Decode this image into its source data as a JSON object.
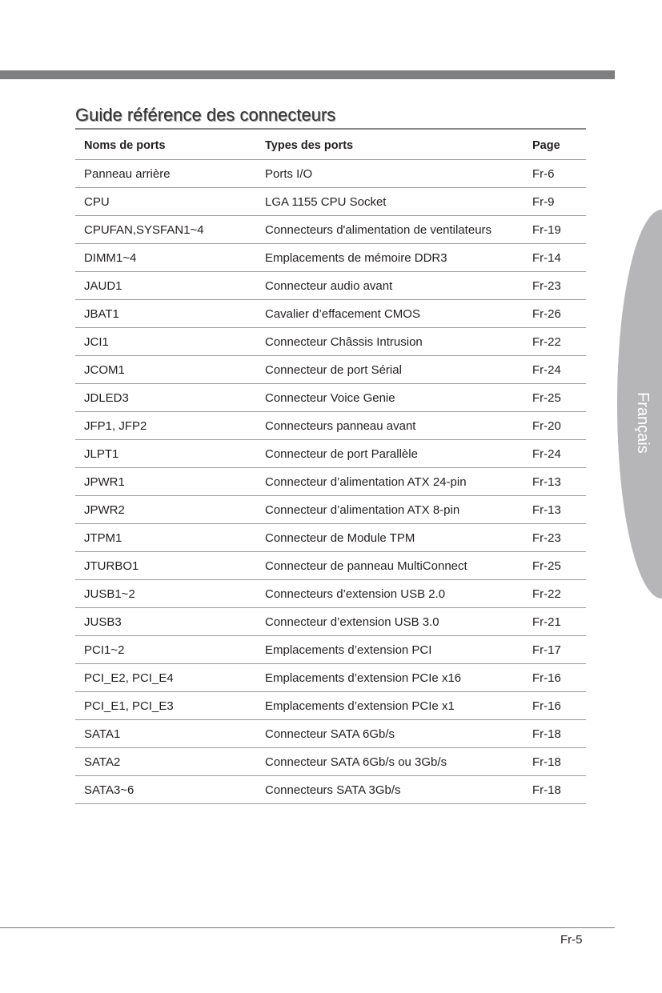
{
  "title": "Guide référence des connecteurs",
  "side_tab": "Français",
  "page_number": "Fr-5",
  "table": {
    "headers": [
      "Noms de ports",
      "Types des ports",
      "Page"
    ],
    "rows": [
      [
        "Panneau arrière",
        "Ports I/O",
        "Fr-6"
      ],
      [
        "CPU",
        "LGA 1155 CPU Socket",
        "Fr-9"
      ],
      [
        "CPUFAN,SYSFAN1~4",
        "Connecteurs d'alimentation de ventilateurs",
        "Fr-19"
      ],
      [
        "DIMM1~4",
        "Emplacements de mémoire DDR3",
        "Fr-14"
      ],
      [
        "JAUD1",
        "Connecteur audio avant",
        "Fr-23"
      ],
      [
        "JBAT1",
        "Cavalier d’effacement CMOS",
        "Fr-26"
      ],
      [
        "JCI1",
        "Connecteur Châssis Intrusion",
        "Fr-22"
      ],
      [
        "JCOM1",
        "Connecteur de port Sérial",
        "Fr-24"
      ],
      [
        "JDLED3",
        "Connecteur Voice Genie",
        "Fr-25"
      ],
      [
        "JFP1, JFP2",
        "Connecteurs panneau avant",
        "Fr-20"
      ],
      [
        "JLPT1",
        "Connecteur de port Parallèle",
        "Fr-24"
      ],
      [
        "JPWR1",
        "Connecteur d’alimentation ATX 24-pin",
        "Fr-13"
      ],
      [
        "JPWR2",
        "Connecteur d’alimentation ATX 8-pin",
        "Fr-13"
      ],
      [
        "JTPM1",
        "Connecteur de Module TPM",
        "Fr-23"
      ],
      [
        "JTURBO1",
        "Connecteur de panneau MultiConnect",
        "Fr-25"
      ],
      [
        "JUSB1~2",
        "Connecteurs d’extension USB 2.0",
        "Fr-22"
      ],
      [
        "JUSB3",
        "Connecteur d’extension USB 3.0",
        "Fr-21"
      ],
      [
        "PCI1~2",
        "Emplacements d’extension PCI",
        "Fr-17"
      ],
      [
        "PCI_E2, PCI_E4",
        "Emplacements d’extension PCIe x16",
        "Fr-16"
      ],
      [
        "PCI_E1, PCI_E3",
        "Emplacements d’extension PCIe x1",
        "Fr-16"
      ],
      [
        "SATA1",
        "Connecteur SATA 6Gb/s",
        "Fr-18"
      ],
      [
        "SATA2",
        "Connecteur SATA 6Gb/s ou 3Gb/s",
        "Fr-18"
      ],
      [
        "SATA3~6",
        "Connecteurs SATA 3Gb/s",
        "Fr-18"
      ]
    ]
  }
}
